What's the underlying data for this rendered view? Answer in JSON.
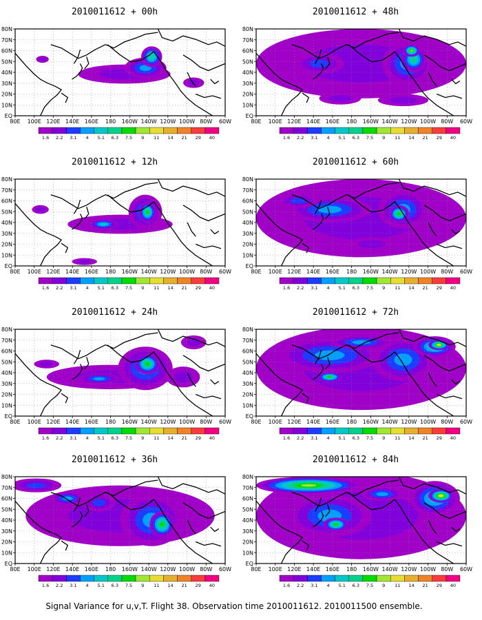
{
  "caption": "Signal Variance for u,v,T. Flight 38. Observation time 2010011612. 2010011500 ensemble.",
  "chart_data": {
    "type": "heatmap",
    "colorbar": {
      "labels": [
        "1.6",
        "2.2",
        "3.1",
        "4",
        "5.1",
        "6.3",
        "7.5",
        "9",
        "11",
        "14",
        "21",
        "29",
        "40"
      ],
      "colors": [
        "#a000c8",
        "#8200dc",
        "#1e3cff",
        "#00a0ff",
        "#00c8c8",
        "#00d28c",
        "#00dc00",
        "#a0e632",
        "#e6dc32",
        "#e6af2d",
        "#f08228",
        "#fa3c3c",
        "#f00082"
      ]
    },
    "axes": {
      "x_ticks": [
        "80E",
        "100E",
        "120E",
        "140E",
        "160E",
        "180",
        "160W",
        "140W",
        "120W",
        "100W",
        "80W",
        "60W"
      ],
      "y_ticks": [
        "EQ",
        "10N",
        "20N",
        "30N",
        "40N",
        "50N",
        "60N",
        "70N",
        "80N"
      ],
      "xlim": [
        "80E",
        "60W"
      ],
      "ylim": [
        "EQ",
        "80N"
      ],
      "grid": true
    },
    "panels": [
      {
        "title": "2010011612 + 00h",
        "blobs": [
          [
            0.52,
            0.52,
            0.22,
            0.11,
            1
          ],
          [
            0.62,
            0.45,
            0.1,
            0.12,
            3
          ],
          [
            0.65,
            0.32,
            0.05,
            0.12,
            5
          ],
          [
            0.13,
            0.35,
            0.03,
            0.04,
            1
          ],
          [
            0.85,
            0.62,
            0.05,
            0.06,
            1
          ]
        ]
      },
      {
        "title": "2010011612 + 48h",
        "blobs": [
          [
            0.5,
            0.4,
            0.5,
            0.4,
            1
          ],
          [
            0.72,
            0.4,
            0.12,
            0.25,
            3
          ],
          [
            0.75,
            0.35,
            0.06,
            0.15,
            5
          ],
          [
            0.74,
            0.25,
            0.04,
            0.07,
            7
          ],
          [
            0.3,
            0.4,
            0.12,
            0.12,
            2
          ],
          [
            0.4,
            0.8,
            0.1,
            0.07,
            1
          ],
          [
            0.7,
            0.82,
            0.12,
            0.07,
            1
          ]
        ]
      },
      {
        "title": "2010011612 + 12h",
        "blobs": [
          [
            0.5,
            0.52,
            0.25,
            0.11,
            1
          ],
          [
            0.42,
            0.52,
            0.07,
            0.06,
            4
          ],
          [
            0.62,
            0.38,
            0.08,
            0.2,
            3
          ],
          [
            0.63,
            0.38,
            0.04,
            0.12,
            6
          ],
          [
            0.12,
            0.35,
            0.04,
            0.05,
            1
          ],
          [
            0.33,
            0.95,
            0.06,
            0.04,
            1
          ]
        ]
      },
      {
        "title": "2010011612 + 60h",
        "blobs": [
          [
            0.5,
            0.45,
            0.5,
            0.45,
            1
          ],
          [
            0.35,
            0.35,
            0.2,
            0.15,
            3
          ],
          [
            0.7,
            0.35,
            0.12,
            0.22,
            3
          ],
          [
            0.68,
            0.4,
            0.05,
            0.1,
            6
          ],
          [
            0.2,
            0.25,
            0.1,
            0.08,
            2
          ],
          [
            0.55,
            0.75,
            0.12,
            0.08,
            1
          ]
        ]
      },
      {
        "title": "2010011612 + 24h",
        "blobs": [
          [
            0.45,
            0.55,
            0.3,
            0.14,
            1
          ],
          [
            0.4,
            0.57,
            0.1,
            0.06,
            3
          ],
          [
            0.62,
            0.45,
            0.13,
            0.25,
            3
          ],
          [
            0.63,
            0.4,
            0.06,
            0.12,
            6
          ],
          [
            0.15,
            0.4,
            0.06,
            0.05,
            1
          ],
          [
            0.8,
            0.55,
            0.08,
            0.12,
            1
          ],
          [
            0.85,
            0.15,
            0.06,
            0.08,
            1
          ]
        ]
      },
      {
        "title": "2010011612 + 72h",
        "blobs": [
          [
            0.5,
            0.45,
            0.5,
            0.48,
            1
          ],
          [
            0.35,
            0.3,
            0.25,
            0.2,
            3
          ],
          [
            0.7,
            0.35,
            0.15,
            0.25,
            3
          ],
          [
            0.85,
            0.2,
            0.1,
            0.12,
            5
          ],
          [
            0.87,
            0.18,
            0.05,
            0.06,
            8
          ],
          [
            0.35,
            0.55,
            0.06,
            0.06,
            6
          ],
          [
            0.5,
            0.15,
            0.15,
            0.08,
            3
          ]
        ]
      },
      {
        "title": "2010011612 + 36h",
        "blobs": [
          [
            0.5,
            0.45,
            0.45,
            0.35,
            1
          ],
          [
            0.65,
            0.5,
            0.15,
            0.3,
            3
          ],
          [
            0.7,
            0.55,
            0.06,
            0.15,
            6
          ],
          [
            0.25,
            0.25,
            0.08,
            0.08,
            3
          ],
          [
            0.4,
            0.3,
            0.08,
            0.1,
            2
          ],
          [
            0.1,
            0.1,
            0.12,
            0.08,
            2
          ]
        ]
      },
      {
        "title": "2010011612 + 84h",
        "blobs": [
          [
            0.5,
            0.45,
            0.5,
            0.5,
            1
          ],
          [
            0.25,
            0.1,
            0.25,
            0.1,
            7
          ],
          [
            0.35,
            0.45,
            0.2,
            0.25,
            3
          ],
          [
            0.38,
            0.55,
            0.06,
            0.08,
            6
          ],
          [
            0.85,
            0.25,
            0.12,
            0.2,
            4
          ],
          [
            0.88,
            0.22,
            0.06,
            0.08,
            8
          ],
          [
            0.6,
            0.2,
            0.1,
            0.08,
            3
          ]
        ]
      }
    ]
  }
}
